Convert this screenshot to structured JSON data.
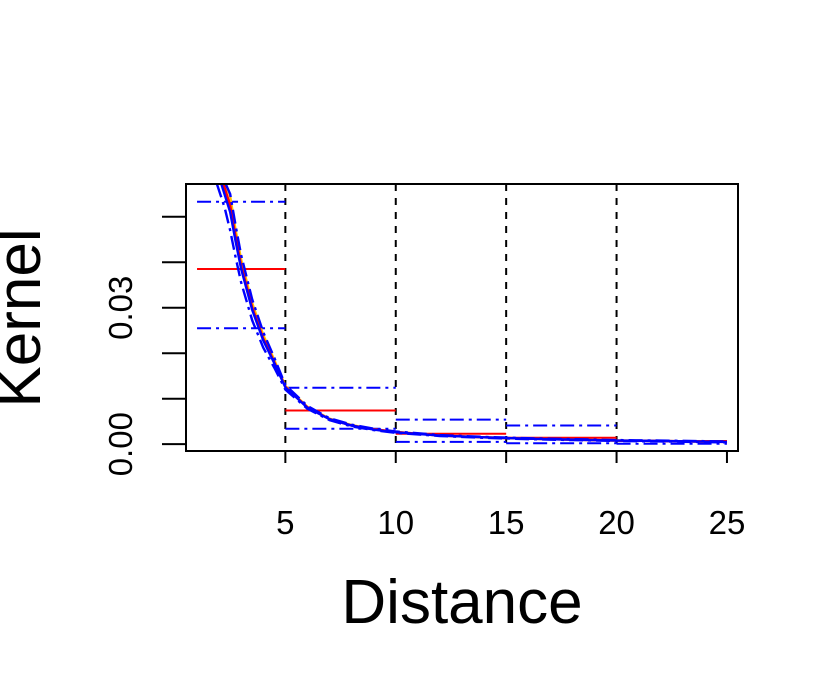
{
  "chart_data": {
    "type": "line",
    "title": "",
    "xlabel": "Distance",
    "ylabel": "Kernel",
    "xlim": [
      0.5,
      25.5
    ],
    "ylim": [
      -0.0015,
      0.0572
    ],
    "x_ticks": [
      5,
      10,
      15,
      20,
      25
    ],
    "x_tick_labels": [
      "5",
      "10",
      "15",
      "20",
      "25"
    ],
    "y_ticks": [
      0.0,
      0.01,
      0.02,
      0.03,
      0.04,
      0.05
    ],
    "y_tick_labels": [
      "0.00",
      "",
      "",
      "0.03",
      "",
      ""
    ],
    "vlines": [
      5,
      10,
      15,
      20
    ],
    "bins": [
      {
        "from": 1,
        "to": 5,
        "estimate": 0.0385,
        "lower": 0.0255,
        "upper": 0.0533
      },
      {
        "from": 5,
        "to": 10,
        "estimate": 0.0074,
        "lower": 0.0034,
        "upper": 0.0124
      },
      {
        "from": 10,
        "to": 15,
        "estimate": 0.0023,
        "lower": 0.0005,
        "upper": 0.0054
      },
      {
        "from": 15,
        "to": 20,
        "estimate": 0.0014,
        "lower": 0.0002,
        "upper": 0.0041
      },
      {
        "from": 20,
        "to": 25,
        "estimate": 0.0007,
        "lower": 0.0001,
        "upper": 0.0007
      }
    ],
    "curves": [
      {
        "color": "#ffc000",
        "style": "solid",
        "x": [
          2.3,
          2.5,
          2.75,
          3,
          3.5,
          4,
          4.5,
          5,
          6,
          7,
          8,
          9,
          10,
          12,
          14,
          16,
          18,
          20,
          22,
          25
        ],
        "y": [
          0.0572,
          0.0545,
          0.047,
          0.0405,
          0.031,
          0.024,
          0.0185,
          0.0128,
          0.0082,
          0.0056,
          0.0042,
          0.0033,
          0.0027,
          0.0019,
          0.0015,
          0.0012,
          0.001,
          0.0008,
          0.0007,
          0.0005
        ]
      },
      {
        "color": "#ff0000",
        "style": "solid",
        "x": [
          2.2,
          2.5,
          2.75,
          3,
          3.5,
          4,
          4.5,
          5,
          6,
          7,
          8,
          9,
          10,
          12,
          14,
          16,
          18,
          20,
          22,
          25
        ],
        "y": [
          0.0572,
          0.0525,
          0.0455,
          0.0392,
          0.03,
          0.0232,
          0.018,
          0.0126,
          0.0081,
          0.0055,
          0.0041,
          0.0033,
          0.0027,
          0.0019,
          0.0015,
          0.0012,
          0.001,
          0.0008,
          0.0007,
          0.0005
        ]
      },
      {
        "color": "#0000ff",
        "style": "solid",
        "x": [
          2.1,
          2.5,
          2.75,
          3,
          3.5,
          4,
          4.5,
          5,
          6,
          7,
          8,
          9,
          10,
          12,
          14,
          16,
          18,
          20,
          22,
          25
        ],
        "y": [
          0.0572,
          0.051,
          0.0445,
          0.0385,
          0.0295,
          0.0228,
          0.0178,
          0.0125,
          0.008,
          0.0055,
          0.0041,
          0.0032,
          0.0026,
          0.0019,
          0.0015,
          0.0012,
          0.001,
          0.0008,
          0.0007,
          0.0005
        ]
      },
      {
        "color": "#0000ff",
        "style": "dashdot",
        "x": [
          2.3,
          2.5,
          2.75,
          3,
          3.5,
          4,
          4.5,
          5,
          6,
          7,
          8,
          9,
          10,
          12,
          14,
          16,
          18,
          20,
          22,
          25
        ],
        "y": [
          0.0572,
          0.055,
          0.048,
          0.0415,
          0.0318,
          0.0246,
          0.019,
          0.013,
          0.0084,
          0.0057,
          0.0043,
          0.0034,
          0.0028,
          0.002,
          0.0016,
          0.0013,
          0.0011,
          0.0009,
          0.0008,
          0.0006
        ]
      },
      {
        "color": "#0000ff",
        "style": "dashdot",
        "x": [
          1.9,
          2.25,
          2.5,
          2.75,
          3,
          3.5,
          4,
          4.5,
          5,
          6,
          7,
          8,
          9,
          10,
          12,
          14,
          16,
          18,
          20,
          22,
          25
        ],
        "y": [
          0.0572,
          0.052,
          0.047,
          0.041,
          0.0355,
          0.0272,
          0.0212,
          0.0168,
          0.012,
          0.0078,
          0.0053,
          0.0039,
          0.0031,
          0.0025,
          0.0018,
          0.0014,
          0.0011,
          0.0009,
          0.0007,
          0.0006,
          0.0004
        ]
      }
    ],
    "grid": false,
    "legend": "none"
  }
}
